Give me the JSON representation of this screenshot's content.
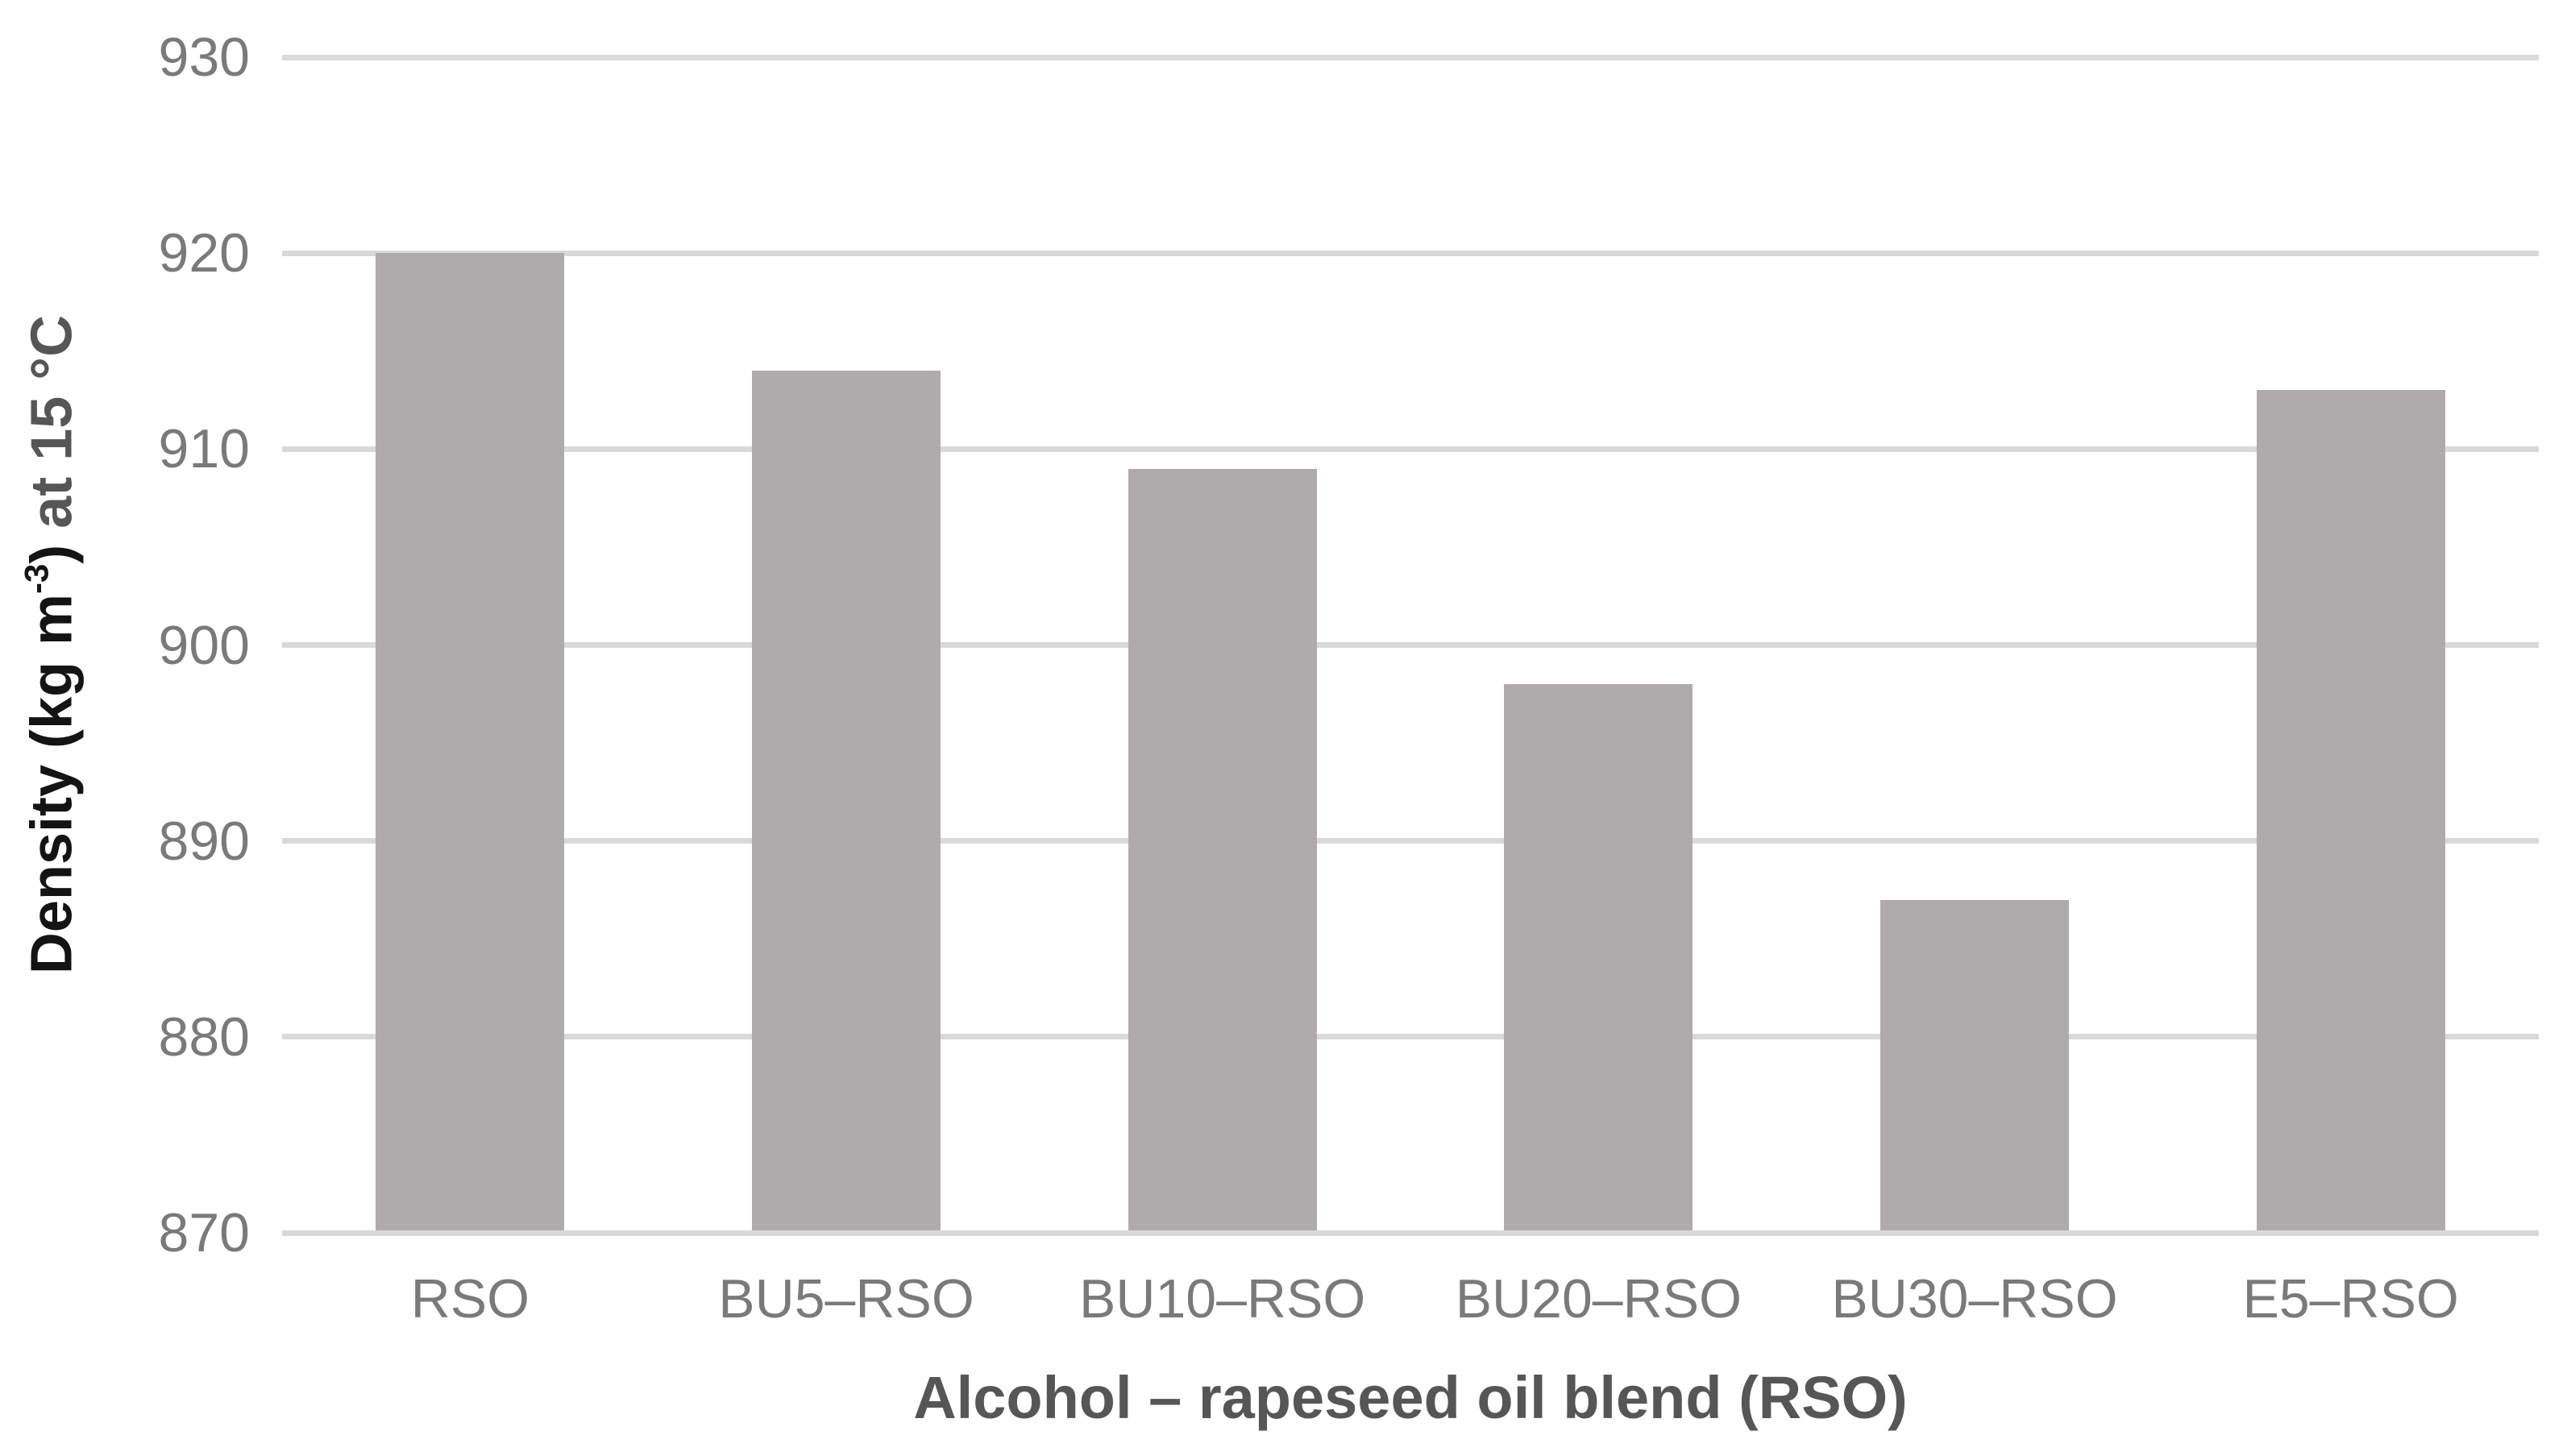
{
  "chart_data": {
    "type": "bar",
    "title": "",
    "categories": [
      "RSO",
      "BU5–RSO",
      "BU10–RSO",
      "BU20–RSO",
      "BU30–RSO",
      "E5–RSO"
    ],
    "values": [
      920,
      914,
      909,
      898,
      887,
      913
    ],
    "xlabel": "Alcohol – rapeseed oil blend (RSO)",
    "ylabel": "Density (kg m⁻³) at 15 °C",
    "ylabel_parts": {
      "pre": "Density (kg m",
      "sup": "-3",
      "close": ")",
      "tail": " at 15 °C"
    },
    "ylim": [
      870,
      930
    ],
    "yticks": [
      870,
      880,
      890,
      900,
      910,
      920,
      930
    ],
    "ytick_step": 10,
    "grid": "horizontal",
    "legend": "none",
    "single_series": true
  },
  "colors": {
    "bar_fill": "#afabac",
    "gridline": "#d9d9d9",
    "axis_line": "#d9d9d9",
    "tick_label": "#7a7a7a",
    "axis_title_dark": "#141414",
    "axis_title_gray": "#565656",
    "background": "#ffffff"
  }
}
